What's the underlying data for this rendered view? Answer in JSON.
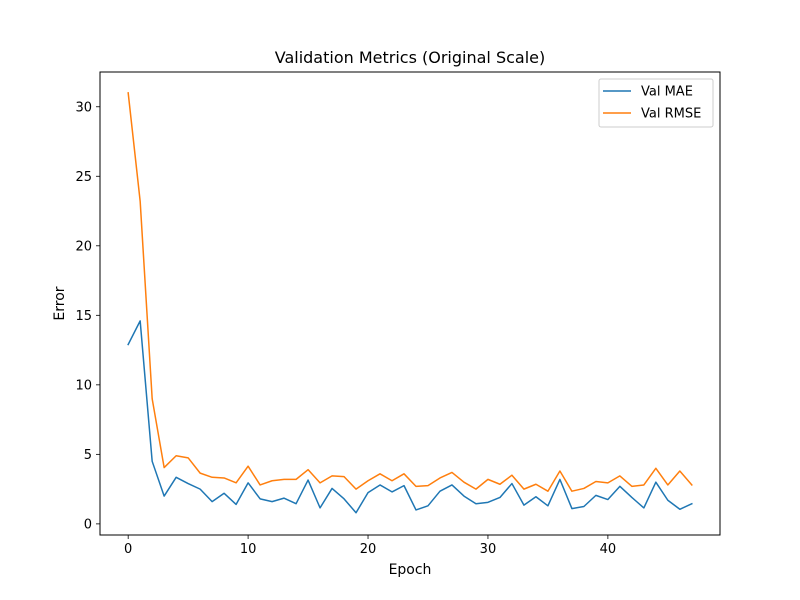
{
  "chart_data": {
    "type": "line",
    "title": "Validation Metrics (Original Scale)",
    "xlabel": "Epoch",
    "ylabel": "Error",
    "xlim": [
      -2.35,
      49.35
    ],
    "ylim": [
      -0.8,
      32.5
    ],
    "xticks": [
      0,
      10,
      20,
      30,
      40
    ],
    "yticks": [
      0,
      5,
      10,
      15,
      20,
      25,
      30
    ],
    "grid": false,
    "legend_position": "top-right",
    "x": [
      0,
      1,
      2,
      3,
      4,
      5,
      6,
      7,
      8,
      9,
      10,
      11,
      12,
      13,
      14,
      15,
      16,
      17,
      18,
      19,
      20,
      21,
      22,
      23,
      24,
      25,
      26,
      27,
      28,
      29,
      30,
      31,
      32,
      33,
      34,
      35,
      36,
      37,
      38,
      39,
      40,
      41,
      42,
      43,
      44,
      45,
      46,
      47
    ],
    "series": [
      {
        "name": "Val MAE",
        "color": "#1f77b4",
        "values": [
          12.9,
          14.6,
          4.5,
          2.0,
          3.35,
          2.9,
          2.5,
          1.6,
          2.2,
          1.4,
          2.95,
          1.8,
          1.6,
          1.85,
          1.45,
          3.15,
          1.15,
          2.55,
          1.8,
          0.8,
          2.25,
          2.8,
          2.3,
          2.75,
          1.0,
          1.3,
          2.35,
          2.8,
          2.0,
          1.45,
          1.55,
          1.9,
          2.9,
          1.35,
          1.95,
          1.3,
          3.2,
          1.1,
          1.25,
          2.05,
          1.75,
          2.7,
          1.9,
          1.15,
          3.0,
          1.7,
          1.05,
          1.45
        ]
      },
      {
        "name": "Val RMSE",
        "color": "#ff7f0e",
        "values": [
          31.0,
          23.2,
          9.0,
          4.05,
          4.9,
          4.75,
          3.65,
          3.35,
          3.3,
          2.95,
          4.15,
          2.8,
          3.1,
          3.2,
          3.2,
          3.9,
          2.95,
          3.45,
          3.4,
          2.5,
          3.1,
          3.6,
          3.1,
          3.6,
          2.7,
          2.75,
          3.3,
          3.7,
          3.0,
          2.5,
          3.2,
          2.85,
          3.5,
          2.5,
          2.85,
          2.35,
          3.8,
          2.35,
          2.55,
          3.05,
          2.95,
          3.45,
          2.7,
          2.8,
          4.0,
          2.8,
          3.8,
          2.8
        ]
      }
    ]
  }
}
